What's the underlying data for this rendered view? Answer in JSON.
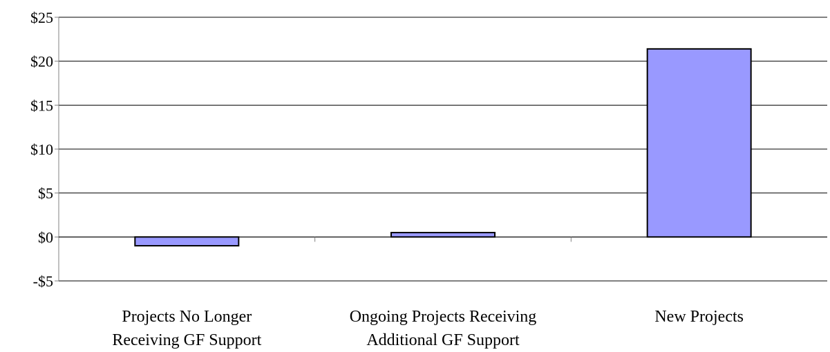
{
  "chart_data": {
    "type": "bar",
    "categories": [
      [
        "Projects No Longer",
        "Receiving GF Support"
      ],
      [
        "Ongoing Projects Receiving",
        "Additional GF Support"
      ],
      [
        "New Projects"
      ]
    ],
    "values": [
      -1.0,
      0.5,
      21.4
    ],
    "ylim": [
      -5,
      25
    ],
    "yticks": [
      25,
      20,
      15,
      10,
      5,
      0,
      -5
    ],
    "ytick_labels": [
      "$25",
      "$20",
      "$15",
      "$10",
      "$5",
      "$0",
      "-$5"
    ],
    "gridlines": true,
    "legend": "none",
    "colors": {
      "bar_fill": "#9999ff",
      "bar_stroke": "#000000",
      "grid": "#000000",
      "axis": "#808080"
    }
  }
}
